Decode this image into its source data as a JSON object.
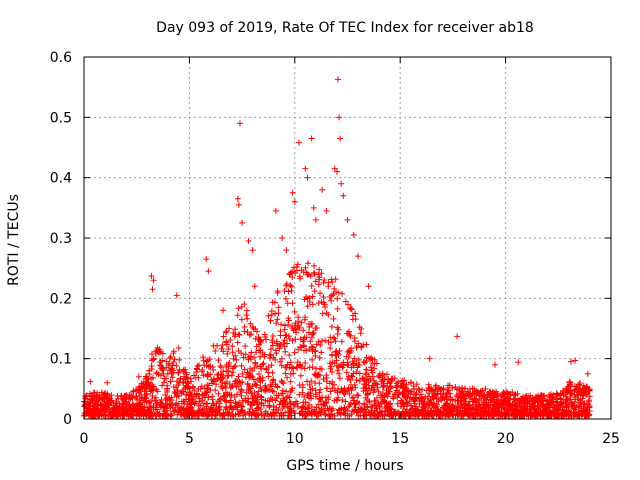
{
  "chart_data": {
    "type": "scatter",
    "title": "Day 093 of 2019, Rate Of TEC Index for receiver ab18",
    "xlabel": "GPS time / hours",
    "ylabel": "ROTI / TECUs",
    "xlim": [
      0,
      25
    ],
    "ylim": [
      0,
      0.6
    ],
    "xticks": [
      "0",
      "5",
      "10",
      "15",
      "20",
      "25"
    ],
    "yticks": [
      "0",
      "0.1",
      "0.2",
      "0.3",
      "0.4",
      "0.5",
      "0.6"
    ],
    "grid": true,
    "marker": "+",
    "color": "#ff0000",
    "envelope": {
      "x": [
        0,
        0.5,
        1,
        1.5,
        2,
        2.5,
        3,
        3.2,
        3.5,
        4,
        4.5,
        5,
        5.5,
        6,
        6.5,
        7,
        7.5,
        8,
        8.5,
        9,
        9.5,
        10,
        10.5,
        11,
        11.5,
        12,
        12.5,
        13,
        13.5,
        14,
        14.5,
        15,
        15.5,
        16,
        16.5,
        17,
        17.5,
        18,
        18.5,
        19,
        19.5,
        20,
        20.5,
        21,
        21.5,
        22,
        22.5,
        23,
        23.5,
        24
      ],
      "ytypical": [
        0.03,
        0.035,
        0.035,
        0.03,
        0.03,
        0.04,
        0.06,
        0.09,
        0.1,
        0.09,
        0.1,
        0.05,
        0.08,
        0.1,
        0.11,
        0.14,
        0.17,
        0.13,
        0.12,
        0.17,
        0.2,
        0.22,
        0.23,
        0.22,
        0.2,
        0.2,
        0.17,
        0.14,
        0.1,
        0.08,
        0.06,
        0.06,
        0.05,
        0.045,
        0.045,
        0.045,
        0.045,
        0.04,
        0.04,
        0.04,
        0.035,
        0.035,
        0.035,
        0.03,
        0.03,
        0.03,
        0.035,
        0.05,
        0.05,
        0.04
      ]
    },
    "outliers": [
      {
        "x": 3.2,
        "y": 0.237
      },
      {
        "x": 3.3,
        "y": 0.23
      },
      {
        "x": 3.25,
        "y": 0.215
      },
      {
        "x": 4.4,
        "y": 0.205
      },
      {
        "x": 5.8,
        "y": 0.265
      },
      {
        "x": 5.9,
        "y": 0.245
      },
      {
        "x": 7.4,
        "y": 0.49
      },
      {
        "x": 7.3,
        "y": 0.365
      },
      {
        "x": 7.35,
        "y": 0.355
      },
      {
        "x": 7.5,
        "y": 0.325
      },
      {
        "x": 7.8,
        "y": 0.295
      },
      {
        "x": 8.0,
        "y": 0.28
      },
      {
        "x": 9.1,
        "y": 0.345
      },
      {
        "x": 9.4,
        "y": 0.3
      },
      {
        "x": 9.6,
        "y": 0.28
      },
      {
        "x": 9.9,
        "y": 0.375
      },
      {
        "x": 10.0,
        "y": 0.36
      },
      {
        "x": 10.2,
        "y": 0.458
      },
      {
        "x": 10.5,
        "y": 0.415
      },
      {
        "x": 10.6,
        "y": 0.4
      },
      {
        "x": 10.8,
        "y": 0.465
      },
      {
        "x": 10.9,
        "y": 0.35
      },
      {
        "x": 11.0,
        "y": 0.33
      },
      {
        "x": 11.3,
        "y": 0.38
      },
      {
        "x": 11.5,
        "y": 0.345
      },
      {
        "x": 11.9,
        "y": 0.415
      },
      {
        "x": 12.0,
        "y": 0.41
      },
      {
        "x": 12.05,
        "y": 0.563
      },
      {
        "x": 12.1,
        "y": 0.5
      },
      {
        "x": 12.15,
        "y": 0.465
      },
      {
        "x": 12.2,
        "y": 0.39
      },
      {
        "x": 12.3,
        "y": 0.37
      },
      {
        "x": 12.5,
        "y": 0.33
      },
      {
        "x": 12.8,
        "y": 0.305
      },
      {
        "x": 13.0,
        "y": 0.27
      },
      {
        "x": 13.5,
        "y": 0.22
      },
      {
        "x": 17.7,
        "y": 0.137
      },
      {
        "x": 16.4,
        "y": 0.1
      },
      {
        "x": 19.5,
        "y": 0.09
      },
      {
        "x": 20.6,
        "y": 0.094
      },
      {
        "x": 23.1,
        "y": 0.095
      },
      {
        "x": 23.3,
        "y": 0.097
      },
      {
        "x": 23.9,
        "y": 0.075
      },
      {
        "x": 0.3,
        "y": 0.062
      },
      {
        "x": 1.1,
        "y": 0.06
      },
      {
        "x": 2.6,
        "y": 0.07
      },
      {
        "x": 6.6,
        "y": 0.18
      },
      {
        "x": 8.1,
        "y": 0.22
      }
    ]
  }
}
